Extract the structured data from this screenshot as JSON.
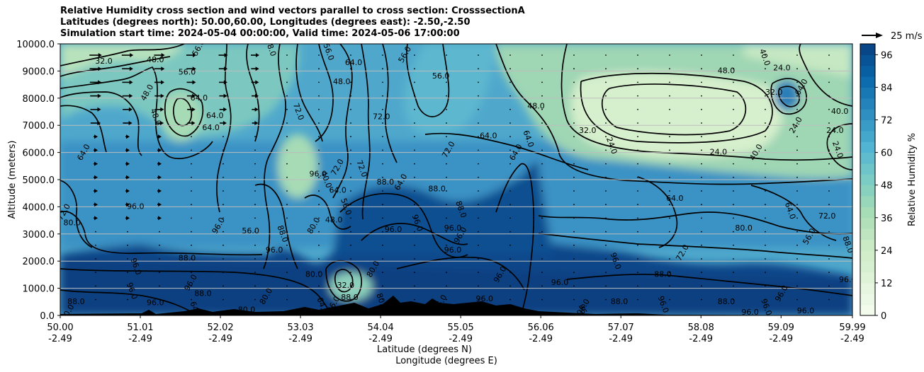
{
  "title_lines": [
    "Relative Humidity cross section and wind vectors parallel to cross section: CrosssectionA",
    "Latitudes (degrees north): 50.00,60.00, Longitudes (degrees east): -2.50,-2.50",
    "Simulation start time: 2024-05-04 00:00:00, Valid time: 2024-05-06 17:00:00"
  ],
  "chart_data": {
    "type": "heatmap",
    "subtype": "filled contour cross-section with contour lines and wind vectors",
    "ylabel": "Altitude (meters)",
    "xlabel_lines": [
      "Latitude (degrees N)",
      "Longitude (degrees E)"
    ],
    "y_ticks": [
      "0.0",
      "1000.0",
      "2000.0",
      "3000.0",
      "4000.0",
      "5000.0",
      "6000.0",
      "7000.0",
      "8000.0",
      "9000.0",
      "10000.0"
    ],
    "y_tick_values": [
      0,
      1000,
      2000,
      3000,
      4000,
      5000,
      6000,
      7000,
      8000,
      9000,
      10000
    ],
    "ylim": [
      0,
      10000
    ],
    "x_ticks": [
      {
        "lat": "50.00",
        "lon": "-2.49",
        "value": 50.0
      },
      {
        "lat": "51.01",
        "lon": "-2.49",
        "value": 51.01
      },
      {
        "lat": "52.02",
        "lon": "-2.49",
        "value": 52.02
      },
      {
        "lat": "53.03",
        "lon": "-2.49",
        "value": 53.03
      },
      {
        "lat": "54.04",
        "lon": "-2.49",
        "value": 54.04
      },
      {
        "lat": "55.05",
        "lon": "-2.49",
        "value": 55.05
      },
      {
        "lat": "56.06",
        "lon": "-2.49",
        "value": 56.06
      },
      {
        "lat": "57.07",
        "lon": "-2.49",
        "value": 57.07
      },
      {
        "lat": "58.08",
        "lon": "-2.49",
        "value": 58.08
      },
      {
        "lat": "59.09",
        "lon": "-2.49",
        "value": 59.09
      },
      {
        "lat": "59.99",
        "lon": "-2.49",
        "value": 59.99
      }
    ],
    "xlim": [
      50.0,
      59.99
    ],
    "colorbar": {
      "label": "Relative Humidity %",
      "ticks": [
        "0",
        "12",
        "24",
        "36",
        "48",
        "60",
        "72",
        "84",
        "96"
      ],
      "tick_values": [
        0,
        12,
        24,
        36,
        48,
        60,
        72,
        84,
        96
      ],
      "range": [
        0,
        100
      ],
      "colormap": "GnBu",
      "colors": [
        "#f7fcf0",
        "#e0f3db",
        "#ccebc5",
        "#a8ddb5",
        "#7bccc4",
        "#4eb3d3",
        "#2b8cbe",
        "#0868ac",
        "#084081"
      ]
    },
    "quiver_key": {
      "label": "25 m/s"
    },
    "grid": true,
    "contour_labels": [
      {
        "text": "32.0",
        "lat": 50.55,
        "alt": 9350
      },
      {
        "text": "56.0",
        "lat": 51.75,
        "alt": 9850
      },
      {
        "text": "48.0",
        "lat": 51.2,
        "alt": 9400
      },
      {
        "text": "48.0",
        "lat": 52.65,
        "alt": 9850
      },
      {
        "text": "56.0",
        "lat": 51.6,
        "alt": 8950
      },
      {
        "text": "48.0",
        "lat": 51.1,
        "alt": 8200
      },
      {
        "text": "64.0",
        "lat": 51.75,
        "alt": 8000
      },
      {
        "text": "48.0",
        "lat": 51.2,
        "alt": 7300
      },
      {
        "text": "64.0",
        "lat": 51.95,
        "alt": 7350
      },
      {
        "text": "64.0",
        "lat": 50.3,
        "alt": 6000
      },
      {
        "text": "64.0",
        "lat": 53.7,
        "alt": 9300
      },
      {
        "text": "56.0",
        "lat": 53.38,
        "alt": 9700
      },
      {
        "text": "48.0",
        "lat": 53.55,
        "alt": 8600
      },
      {
        "text": "56.0",
        "lat": 54.35,
        "alt": 9600
      },
      {
        "text": "56.0",
        "lat": 54.8,
        "alt": 8800
      },
      {
        "text": "72.0",
        "lat": 53.0,
        "alt": 7500
      },
      {
        "text": "72.0",
        "lat": 54.05,
        "alt": 7300
      },
      {
        "text": "72.0",
        "lat": 54.9,
        "alt": 6100
      },
      {
        "text": "64.0",
        "lat": 55.4,
        "alt": 6600
      },
      {
        "text": "64.0",
        "lat": 55.9,
        "alt": 6500
      },
      {
        "text": "48.0",
        "lat": 56.0,
        "alt": 7700
      },
      {
        "text": "64.0",
        "lat": 55.75,
        "alt": 6000
      },
      {
        "text": "32.0",
        "lat": 56.65,
        "alt": 6800
      },
      {
        "text": "24.0",
        "lat": 56.95,
        "alt": 6250
      },
      {
        "text": "24.0",
        "lat": 58.3,
        "alt": 6000
      },
      {
        "text": "24.0",
        "lat": 59.28,
        "alt": 7000
      },
      {
        "text": "24.0",
        "lat": 59.77,
        "alt": 6800
      },
      {
        "text": "24.0",
        "lat": 59.8,
        "alt": 6100
      },
      {
        "text": "40.0",
        "lat": 59.83,
        "alt": 7500
      },
      {
        "text": "40.0",
        "lat": 58.78,
        "alt": 6000
      },
      {
        "text": "48.0",
        "lat": 58.4,
        "alt": 9000
      },
      {
        "text": "40.0",
        "lat": 58.88,
        "alt": 9500
      },
      {
        "text": "32.0",
        "lat": 59.0,
        "alt": 8200
      },
      {
        "text": "64.0",
        "lat": 59.35,
        "alt": 8400
      },
      {
        "text": "24.0",
        "lat": 59.1,
        "alt": 9100
      },
      {
        "text": "40.0",
        "lat": 53.35,
        "alt": 5000
      },
      {
        "text": "96.0",
        "lat": 53.25,
        "alt": 5200
      },
      {
        "text": "72.0",
        "lat": 53.5,
        "alt": 5450
      },
      {
        "text": "64.0",
        "lat": 53.5,
        "alt": 4600
      },
      {
        "text": "72.0",
        "lat": 53.8,
        "alt": 5400
      },
      {
        "text": "88.0",
        "lat": 54.1,
        "alt": 4900
      },
      {
        "text": "64.0",
        "lat": 54.3,
        "alt": 4900
      },
      {
        "text": "88.0",
        "lat": 54.75,
        "alt": 4650
      },
      {
        "text": "88.0",
        "lat": 55.05,
        "alt": 3900
      },
      {
        "text": "96.0",
        "lat": 54.95,
        "alt": 3200
      },
      {
        "text": "96.0",
        "lat": 55.05,
        "alt": 2950
      },
      {
        "text": "96.0",
        "lat": 54.95,
        "alt": 2400
      },
      {
        "text": "96.0",
        "lat": 54.5,
        "alt": 3400
      },
      {
        "text": "96.0",
        "lat": 54.2,
        "alt": 3150
      },
      {
        "text": "96.0",
        "lat": 55.55,
        "alt": 1500
      },
      {
        "text": "96.0",
        "lat": 56.3,
        "alt": 1200
      },
      {
        "text": "96.0",
        "lat": 57.0,
        "alt": 2000
      },
      {
        "text": "88.0",
        "lat": 57.6,
        "alt": 1500
      },
      {
        "text": "72.0",
        "lat": 57.85,
        "alt": 2300
      },
      {
        "text": "64.0",
        "lat": 57.75,
        "alt": 4300
      },
      {
        "text": "64.0",
        "lat": 59.2,
        "alt": 3850
      },
      {
        "text": "80.0",
        "lat": 58.62,
        "alt": 3200
      },
      {
        "text": "56.0",
        "lat": 59.45,
        "alt": 2900
      },
      {
        "text": "72.0",
        "lat": 59.67,
        "alt": 3650
      },
      {
        "text": "88.0",
        "lat": 59.93,
        "alt": 2600
      },
      {
        "text": "96.0",
        "lat": 59.93,
        "alt": 1300
      },
      {
        "text": "96.0",
        "lat": 59.1,
        "alt": 800
      },
      {
        "text": "88.0",
        "lat": 58.4,
        "alt": 500
      },
      {
        "text": "96.0",
        "lat": 58.9,
        "alt": 300
      },
      {
        "text": "96.0",
        "lat": 59.4,
        "alt": 150
      },
      {
        "text": "96.0",
        "lat": 56.6,
        "alt": 300
      },
      {
        "text": "88.0",
        "lat": 57.05,
        "alt": 500
      },
      {
        "text": "96.0",
        "lat": 57.6,
        "alt": 400
      },
      {
        "text": "96.0",
        "lat": 55.2,
        "alt": 300
      },
      {
        "text": "96.0",
        "lat": 54.8,
        "alt": 450
      },
      {
        "text": "96.0",
        "lat": 55.35,
        "alt": 600
      },
      {
        "text": "80.0",
        "lat": 54.05,
        "alt": 500
      },
      {
        "text": "88.0",
        "lat": 53.65,
        "alt": 650
      },
      {
        "text": "96.0",
        "lat": 53.45,
        "alt": 400
      },
      {
        "text": "32.0",
        "lat": 53.6,
        "alt": 1100
      },
      {
        "text": "64.0",
        "lat": 53.3,
        "alt": 350
      },
      {
        "text": "80.0",
        "lat": 53.2,
        "alt": 1500
      },
      {
        "text": "80.0",
        "lat": 52.6,
        "alt": 700
      },
      {
        "text": "80.0",
        "lat": 52.35,
        "alt": 200
      },
      {
        "text": "64.0",
        "lat": 51.7,
        "alt": 200
      },
      {
        "text": "88.0",
        "lat": 51.8,
        "alt": 800
      },
      {
        "text": "96.0",
        "lat": 51.65,
        "alt": 1200
      },
      {
        "text": "96.0",
        "lat": 51.2,
        "alt": 450
      },
      {
        "text": "96.0",
        "lat": 50.9,
        "alt": 900
      },
      {
        "text": "88.0",
        "lat": 51.6,
        "alt": 2100
      },
      {
        "text": "96.0",
        "lat": 52.0,
        "alt": 3300
      },
      {
        "text": "56.0",
        "lat": 52.4,
        "alt": 3100
      },
      {
        "text": "88.0",
        "lat": 52.8,
        "alt": 3000
      },
      {
        "text": "96.0",
        "lat": 52.7,
        "alt": 2400
      },
      {
        "text": "80.0",
        "lat": 53.2,
        "alt": 3300
      },
      {
        "text": "48.0",
        "lat": 53.45,
        "alt": 3500
      },
      {
        "text": "56.0",
        "lat": 53.6,
        "alt": 4000
      },
      {
        "text": "96.0",
        "lat": 50.95,
        "alt": 4000
      },
      {
        "text": "72.0",
        "lat": 50.05,
        "alt": 3800
      },
      {
        "text": "80.0",
        "lat": 50.15,
        "alt": 3400
      },
      {
        "text": "96.0",
        "lat": 50.95,
        "alt": 1800
      },
      {
        "text": "88.0",
        "lat": 50.2,
        "alt": 500
      },
      {
        "text": "80.0",
        "lat": 50.1,
        "alt": 100
      },
      {
        "text": "64.0",
        "lat": 51.9,
        "alt": 6900
      },
      {
        "text": "96.0",
        "lat": 56.6,
        "alt": 100
      },
      {
        "text": "96.0",
        "lat": 58.7,
        "alt": 100
      },
      {
        "text": "80.0",
        "lat": 53.95,
        "alt": 1700
      }
    ]
  }
}
